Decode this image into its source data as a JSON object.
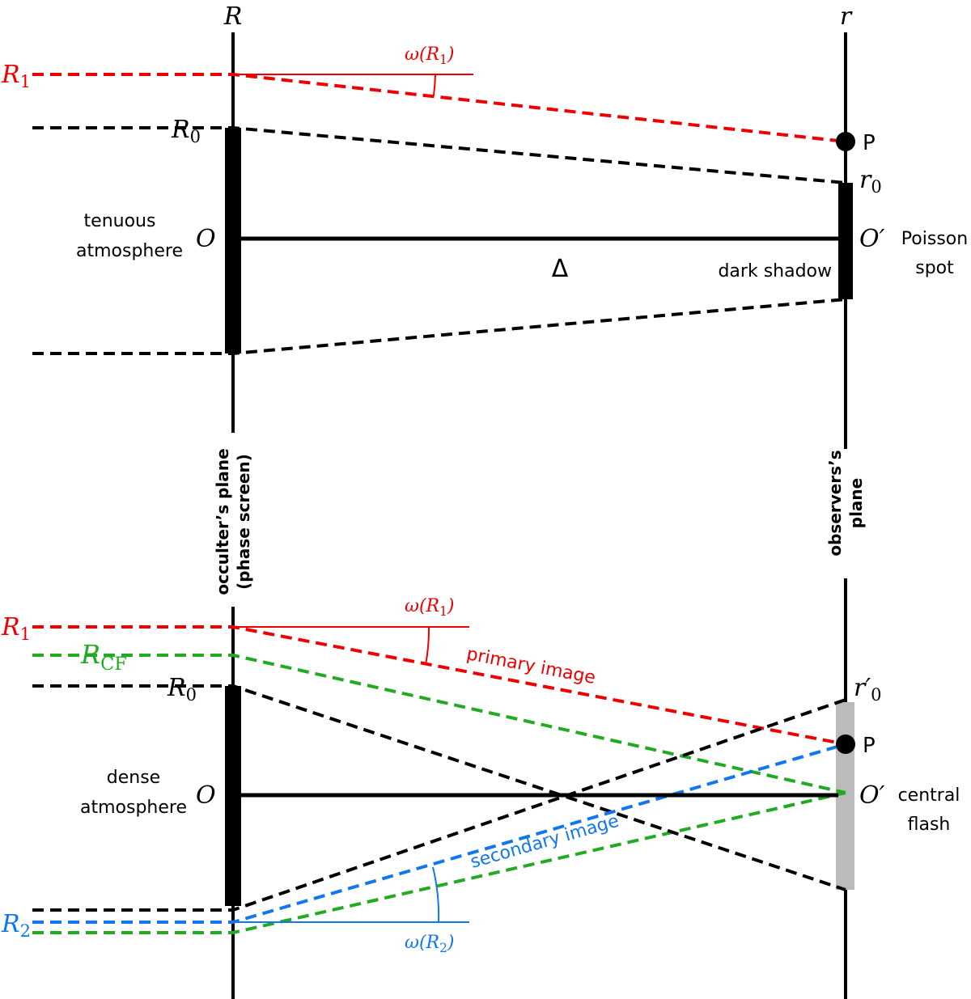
{
  "top": {
    "axis_left": "R",
    "axis_right": "r",
    "R1": {
      "main": "R",
      "sub": "1"
    },
    "omega": {
      "pre": "ω(",
      "main": "R",
      "sub": "1",
      "post": ")"
    },
    "R0": {
      "main": "R",
      "sub": "0"
    },
    "P": "P",
    "r0": {
      "main": "r",
      "sub": "0"
    },
    "medium": [
      "tenuous",
      "atmosphere"
    ],
    "O": "O",
    "O_prime": "O′",
    "delta": "Δ",
    "shadow": "dark shadow",
    "spot": [
      "Poisson",
      "spot"
    ]
  },
  "planes": {
    "occulter": [
      "occulter’s plane",
      "(phase screen)"
    ],
    "observer": [
      "observers’s",
      "plane"
    ]
  },
  "bottom": {
    "omega1": {
      "pre": "ω(",
      "main": "R",
      "sub": "1",
      "post": ")"
    },
    "R1": {
      "main": "R",
      "sub": "1"
    },
    "RCF": {
      "main": "R",
      "sub": "CF"
    },
    "R0": {
      "main": "R",
      "sub": "0"
    },
    "primary": "primary image",
    "r0p": {
      "main": "r′",
      "sub": "0"
    },
    "P": "P",
    "medium": [
      "dense",
      "atmosphere"
    ],
    "O": "O",
    "O_prime": "O′",
    "flash": [
      "central",
      "flash"
    ],
    "secondary": "secondary image",
    "R2": {
      "main": "R",
      "sub": "2"
    },
    "omega2": {
      "pre": "ω(",
      "main": "R",
      "sub": "2",
      "post": ")"
    }
  }
}
